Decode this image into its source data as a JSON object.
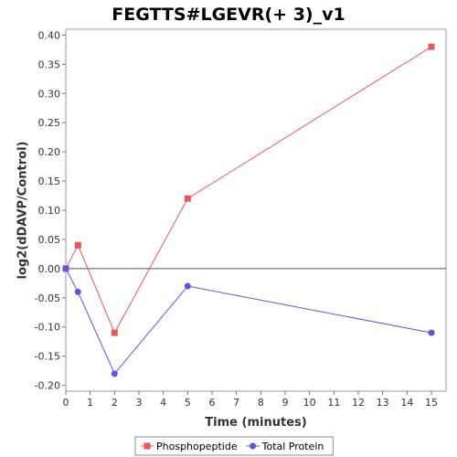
{
  "chart_data": {
    "type": "line",
    "title": "FEGTTS#LGEVR(+ 3)_v1",
    "xlabel": "Time (minutes)",
    "ylabel": "log2(dDAVP/Control)",
    "xlim": [
      0,
      15.6
    ],
    "ylim": [
      -0.21,
      0.41
    ],
    "xticks": [
      0,
      1,
      2,
      3,
      4,
      5,
      6,
      7,
      8,
      9,
      10,
      11,
      12,
      13,
      14,
      15
    ],
    "yticks": [
      -0.2,
      -0.15,
      -0.1,
      -0.05,
      0.0,
      0.05,
      0.1,
      0.15,
      0.2,
      0.25,
      0.3,
      0.35,
      0.4
    ],
    "zero_line": true,
    "grid": false,
    "legend_position": "bottom",
    "series": [
      {
        "name": "Phosphopeptide",
        "color": "#e8585a",
        "marker": "square",
        "x": [
          0,
          0.5,
          2,
          5,
          15
        ],
        "y": [
          0.0,
          0.04,
          -0.11,
          0.12,
          0.38
        ]
      },
      {
        "name": "Total Protein",
        "color": "#5757e8",
        "marker": "circle",
        "x": [
          0,
          0.5,
          2,
          5,
          15
        ],
        "y": [
          0.0,
          -0.04,
          -0.18,
          -0.03,
          -0.11
        ]
      }
    ]
  }
}
